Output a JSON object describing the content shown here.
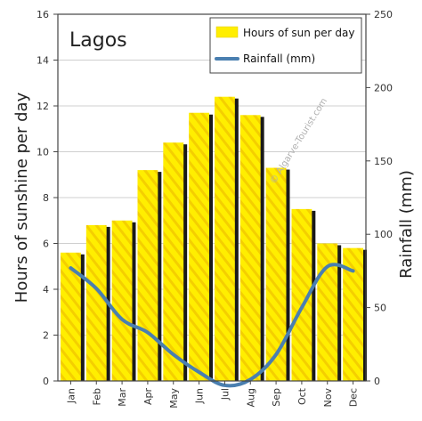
{
  "chart_data": {
    "type": "bar",
    "title": "Lagos",
    "categories": [
      "Jan",
      "Feb",
      "Mar",
      "Apr",
      "May",
      "Jun",
      "Jul",
      "Aug",
      "Sep",
      "Oct",
      "Nov",
      "Dec"
    ],
    "series": [
      {
        "name": "Hours of sun per day",
        "type": "bar",
        "axis": "left",
        "color": "#ffee00",
        "values": [
          5.6,
          6.8,
          7.0,
          9.2,
          10.4,
          11.7,
          12.4,
          11.6,
          9.3,
          7.5,
          6.0,
          5.8
        ]
      },
      {
        "name": "Rainfall (mm)",
        "type": "line",
        "axis": "right",
        "color": "#4a7fb0",
        "values": [
          77,
          63,
          42,
          33,
          18,
          6,
          -3,
          1,
          18,
          50,
          78,
          75
        ]
      }
    ],
    "ylabel": "Hours of sunshine per day",
    "y2label": "Rainfall (mm)",
    "ylim": [
      0,
      16
    ],
    "y2lim": [
      0,
      250
    ],
    "yticks": [
      "0",
      "2",
      "4",
      "6",
      "8",
      "10",
      "12",
      "14",
      "16"
    ],
    "y2ticks": [
      "0",
      "50",
      "100",
      "150",
      "200",
      "250"
    ],
    "grid": true,
    "legend_position": "top-right",
    "watermark": "© Algarve-Tourist.com"
  }
}
